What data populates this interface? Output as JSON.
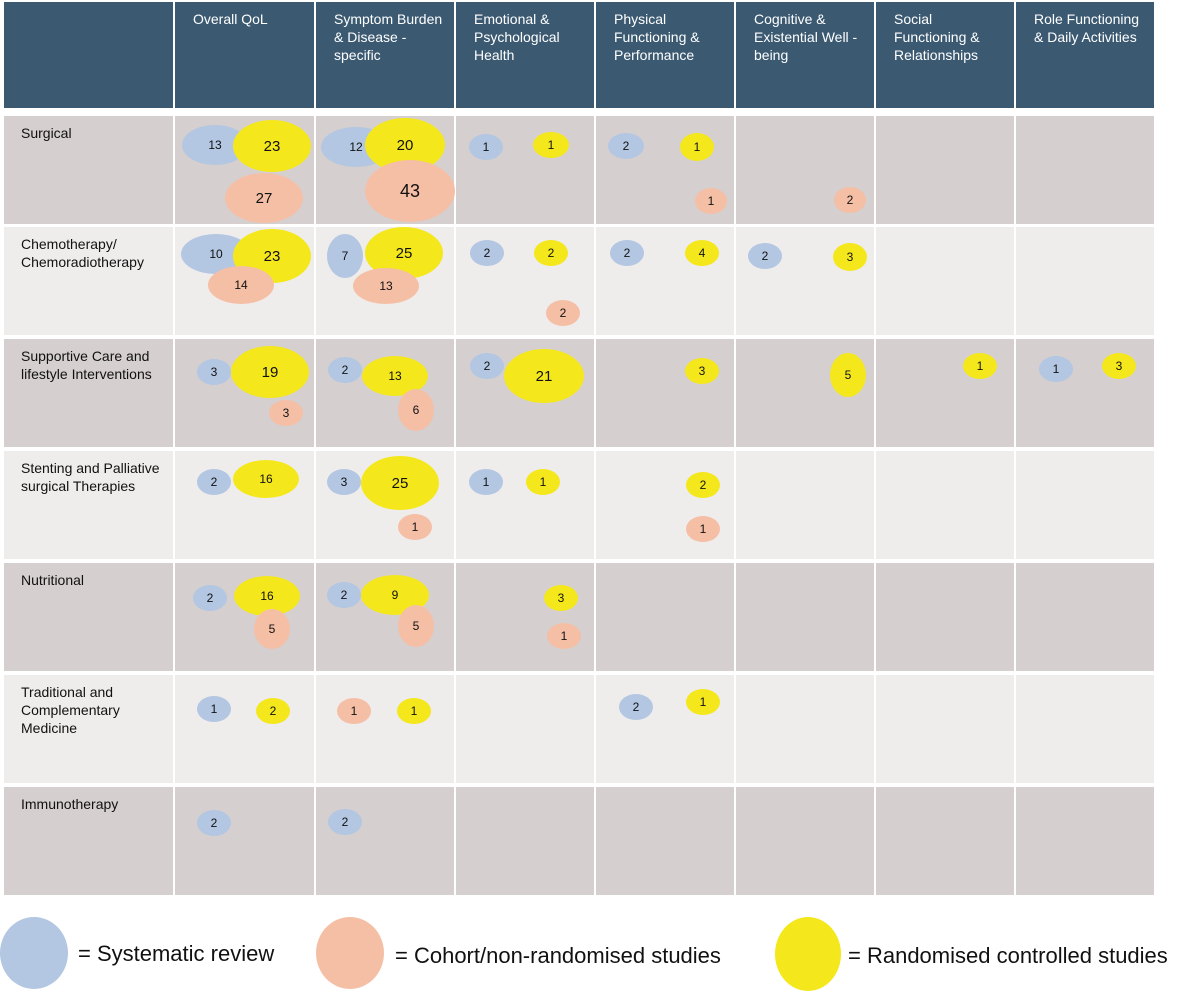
{
  "colors": {
    "header_bg": "#3b5a72",
    "header_text": "#ffffff",
    "row_dark": "#d5cfcf",
    "row_light": "#efecec",
    "systematic_review": "#b3c6e2",
    "cohort": "#f5bfa5",
    "rct": "#f4e81c"
  },
  "columns": [
    "Overall QoL",
    "Symptom Burden & Disease - specific",
    "Emotional & Psychological Health",
    "Physical Functioning & Performance",
    "Cognitive & Existential Well - being",
    "Social Functioning & Relationships",
    "Role Functioning & Daily Activities"
  ],
  "rows": [
    "Surgical",
    "Chemotherapy/ Chemoradiotherapy",
    "Supportive Care and lifestyle Interventions",
    "Stenting and Palliative surgical Therapies",
    "Nutritional",
    "Traditional and Complementary Medicine",
    "Immunotherapy"
  ],
  "bubbles": [
    {
      "row": 0,
      "col": 0,
      "type": "systematic_review",
      "value": 13
    },
    {
      "row": 0,
      "col": 0,
      "type": "rct",
      "value": 23
    },
    {
      "row": 0,
      "col": 0,
      "type": "cohort",
      "value": 27
    },
    {
      "row": 0,
      "col": 1,
      "type": "systematic_review",
      "value": 12
    },
    {
      "row": 0,
      "col": 1,
      "type": "rct",
      "value": 20
    },
    {
      "row": 0,
      "col": 1,
      "type": "cohort",
      "value": 43
    },
    {
      "row": 0,
      "col": 2,
      "type": "systematic_review",
      "value": 1
    },
    {
      "row": 0,
      "col": 2,
      "type": "rct",
      "value": 1
    },
    {
      "row": 0,
      "col": 3,
      "type": "systematic_review",
      "value": 2
    },
    {
      "row": 0,
      "col": 3,
      "type": "rct",
      "value": 1
    },
    {
      "row": 0,
      "col": 3,
      "type": "cohort",
      "value": 1
    },
    {
      "row": 0,
      "col": 4,
      "type": "cohort",
      "value": 2
    },
    {
      "row": 1,
      "col": 0,
      "type": "systematic_review",
      "value": 10
    },
    {
      "row": 1,
      "col": 0,
      "type": "rct",
      "value": 23
    },
    {
      "row": 1,
      "col": 0,
      "type": "cohort",
      "value": 14
    },
    {
      "row": 1,
      "col": 1,
      "type": "systematic_review",
      "value": 7
    },
    {
      "row": 1,
      "col": 1,
      "type": "rct",
      "value": 25
    },
    {
      "row": 1,
      "col": 1,
      "type": "cohort",
      "value": 13
    },
    {
      "row": 1,
      "col": 2,
      "type": "systematic_review",
      "value": 2
    },
    {
      "row": 1,
      "col": 2,
      "type": "rct",
      "value": 2
    },
    {
      "row": 1,
      "col": 2,
      "type": "cohort",
      "value": 2
    },
    {
      "row": 1,
      "col": 3,
      "type": "systematic_review",
      "value": 2
    },
    {
      "row": 1,
      "col": 3,
      "type": "rct",
      "value": 4
    },
    {
      "row": 1,
      "col": 4,
      "type": "systematic_review",
      "value": 2
    },
    {
      "row": 1,
      "col": 4,
      "type": "rct",
      "value": 3
    },
    {
      "row": 2,
      "col": 0,
      "type": "systematic_review",
      "value": 3
    },
    {
      "row": 2,
      "col": 0,
      "type": "rct",
      "value": 19
    },
    {
      "row": 2,
      "col": 0,
      "type": "cohort",
      "value": 3
    },
    {
      "row": 2,
      "col": 1,
      "type": "systematic_review",
      "value": 2
    },
    {
      "row": 2,
      "col": 1,
      "type": "rct",
      "value": 13
    },
    {
      "row": 2,
      "col": 1,
      "type": "cohort",
      "value": 6
    },
    {
      "row": 2,
      "col": 2,
      "type": "systematic_review",
      "value": 2
    },
    {
      "row": 2,
      "col": 2,
      "type": "rct",
      "value": 21
    },
    {
      "row": 2,
      "col": 3,
      "type": "rct",
      "value": 3
    },
    {
      "row": 2,
      "col": 4,
      "type": "rct",
      "value": 5
    },
    {
      "row": 2,
      "col": 5,
      "type": "rct",
      "value": 1
    },
    {
      "row": 2,
      "col": 6,
      "type": "systematic_review",
      "value": 1
    },
    {
      "row": 2,
      "col": 6,
      "type": "rct",
      "value": 3
    },
    {
      "row": 3,
      "col": 0,
      "type": "systematic_review",
      "value": 2
    },
    {
      "row": 3,
      "col": 0,
      "type": "rct",
      "value": 16
    },
    {
      "row": 3,
      "col": 1,
      "type": "systematic_review",
      "value": 3
    },
    {
      "row": 3,
      "col": 1,
      "type": "rct",
      "value": 25
    },
    {
      "row": 3,
      "col": 1,
      "type": "cohort",
      "value": 1
    },
    {
      "row": 3,
      "col": 2,
      "type": "systematic_review",
      "value": 1
    },
    {
      "row": 3,
      "col": 2,
      "type": "rct",
      "value": 1
    },
    {
      "row": 3,
      "col": 3,
      "type": "rct",
      "value": 2
    },
    {
      "row": 3,
      "col": 3,
      "type": "cohort",
      "value": 1
    },
    {
      "row": 4,
      "col": 0,
      "type": "systematic_review",
      "value": 2
    },
    {
      "row": 4,
      "col": 0,
      "type": "rct",
      "value": 16
    },
    {
      "row": 4,
      "col": 0,
      "type": "cohort",
      "value": 5
    },
    {
      "row": 4,
      "col": 1,
      "type": "systematic_review",
      "value": 2
    },
    {
      "row": 4,
      "col": 1,
      "type": "rct",
      "value": 9
    },
    {
      "row": 4,
      "col": 1,
      "type": "cohort",
      "value": 5
    },
    {
      "row": 4,
      "col": 2,
      "type": "rct",
      "value": 3
    },
    {
      "row": 4,
      "col": 2,
      "type": "cohort",
      "value": 1
    },
    {
      "row": 5,
      "col": 0,
      "type": "systematic_review",
      "value": 1
    },
    {
      "row": 5,
      "col": 0,
      "type": "rct",
      "value": 2
    },
    {
      "row": 5,
      "col": 1,
      "type": "cohort",
      "value": 1
    },
    {
      "row": 5,
      "col": 1,
      "type": "rct",
      "value": 1
    },
    {
      "row": 5,
      "col": 3,
      "type": "systematic_review",
      "value": 2
    },
    {
      "row": 5,
      "col": 3,
      "type": "rct",
      "value": 1
    },
    {
      "row": 6,
      "col": 0,
      "type": "systematic_review",
      "value": 2
    },
    {
      "row": 6,
      "col": 1,
      "type": "systematic_review",
      "value": 2
    }
  ],
  "legend": [
    {
      "type": "systematic_review",
      "label": "= Systematic review"
    },
    {
      "type": "cohort",
      "label": "= Cohort/non-randomised studies"
    },
    {
      "type": "rct",
      "label": "= Randomised controlled studies"
    }
  ]
}
